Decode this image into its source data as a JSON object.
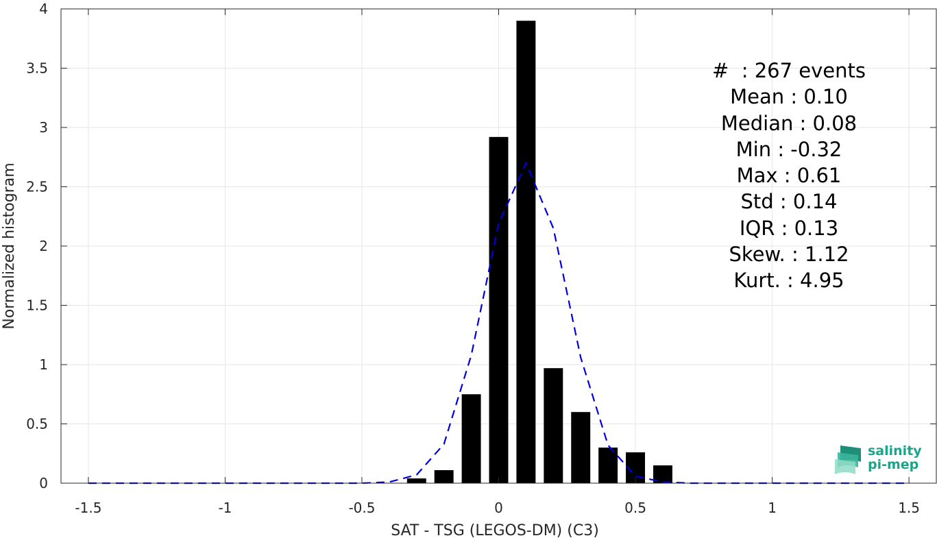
{
  "chart_data": {
    "type": "bar",
    "xlabel": "SAT - TSG (LEGOS-DM) (C3)",
    "ylabel": "Normalized histogram",
    "xlim": [
      -1.6,
      1.6
    ],
    "ylim": [
      0,
      4
    ],
    "xticks": [
      -1.5,
      -1,
      -0.5,
      0,
      0.5,
      1,
      1.5
    ],
    "yticks": [
      0,
      0.5,
      1,
      1.5,
      2,
      2.5,
      3,
      3.5,
      4
    ],
    "grid": true,
    "bar_width": 0.07,
    "bars": {
      "x": [
        -0.3,
        -0.2,
        -0.1,
        0.0,
        0.1,
        0.2,
        0.3,
        0.4,
        0.5,
        0.6
      ],
      "values": [
        0.04,
        0.11,
        0.75,
        2.92,
        3.9,
        0.97,
        0.6,
        0.3,
        0.26,
        0.15
      ]
    },
    "fit_line": {
      "style": "dashed",
      "color": "#0000dd",
      "x": [
        -1.5,
        -1.4,
        -1.3,
        -1.2,
        -1.1,
        -1.0,
        -0.9,
        -0.8,
        -0.7,
        -0.6,
        -0.5,
        -0.4,
        -0.3,
        -0.2,
        -0.1,
        0.0,
        0.1,
        0.2,
        0.3,
        0.4,
        0.5,
        0.6,
        0.7,
        0.8,
        0.9,
        1.0,
        1.1,
        1.2,
        1.3,
        1.4,
        1.5
      ],
      "y": [
        0,
        0,
        0,
        0,
        0,
        0,
        0,
        0,
        0,
        0,
        0,
        0.01,
        0.07,
        0.33,
        1.08,
        2.19,
        2.7,
        2.15,
        1.06,
        0.32,
        0.06,
        0.01,
        0,
        0,
        0,
        0,
        0,
        0,
        0,
        0,
        0
      ]
    },
    "stats": [
      "#  : 267 events",
      "Mean : 0.10",
      "Median : 0.08",
      "Min : -0.32",
      "Max : 0.61",
      "Std : 0.14",
      "IQR : 0.13",
      "Skew. : 1.12",
      "Kurt. : 4.95"
    ]
  },
  "logo": {
    "line1": "salinity",
    "line2": "pi-mep",
    "color": "#1aa58a"
  },
  "colors": {
    "bars": "#000000",
    "grid": "#e6e6e6",
    "axis": "#262626"
  }
}
